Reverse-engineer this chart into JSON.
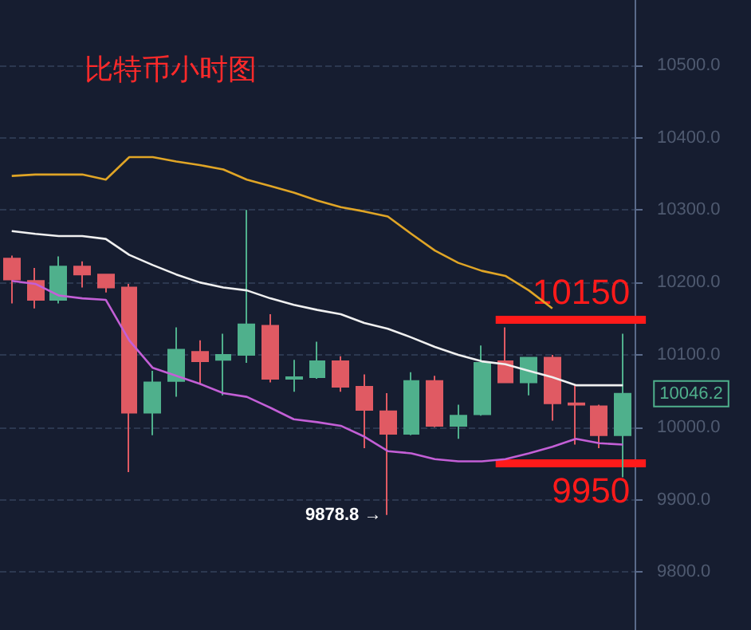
{
  "chart_data": {
    "type": "candlestick",
    "title": "比特币小时图",
    "categories": [
      null,
      null,
      null,
      null,
      null,
      null,
      null,
      null,
      null,
      null,
      null,
      null,
      null,
      null,
      null,
      null,
      null,
      null,
      null,
      null,
      null,
      null,
      null,
      null,
      null,
      null,
      null
    ],
    "ohlc": [
      [
        10233,
        10237,
        10171,
        10204
      ],
      [
        10202,
        10220,
        10164,
        10176
      ],
      [
        10176,
        10236,
        10171,
        10222
      ],
      [
        10222,
        10229,
        10193,
        10211
      ],
      [
        10211,
        10211,
        10186,
        10193
      ],
      [
        10193,
        10198,
        9938,
        10020
      ],
      [
        10020,
        10078,
        9989,
        10062
      ],
      [
        10064,
        10138,
        10042,
        10107
      ],
      [
        10104,
        10120,
        10060,
        10091
      ],
      [
        10093,
        10129,
        10044,
        10100
      ],
      [
        10100,
        10300,
        10089,
        10142
      ],
      [
        10140,
        10156,
        10062,
        10067
      ],
      [
        10067,
        10093,
        10049,
        10069
      ],
      [
        10069,
        10118,
        10067,
        10091
      ],
      [
        10091,
        10098,
        10049,
        10056
      ],
      [
        10056,
        10073,
        9971,
        10024
      ],
      [
        10022,
        10047,
        9878.8,
        9991
      ],
      [
        9991,
        10076,
        9989,
        10064
      ],
      [
        10064,
        10071,
        10000,
        10002
      ],
      [
        10002,
        10031,
        9984,
        10016
      ],
      [
        10018,
        10113,
        10016,
        10089
      ],
      [
        10091,
        10138,
        10062,
        10062
      ],
      [
        10062,
        10096,
        10044,
        10096
      ],
      [
        10096,
        10100,
        10009,
        10033
      ],
      [
        10033,
        10058,
        9976,
        10031
      ],
      [
        10029,
        10031,
        9971,
        9989
      ],
      [
        9989,
        10129,
        9931,
        10046.2
      ]
    ],
    "colors": [
      "#e05a63",
      "#e05a63",
      "#4fb08c",
      "#e05a63",
      "#e05a63",
      "#e05a63",
      "#4fb08c",
      "#4fb08c",
      "#e05a63",
      "#4fb08c",
      "#4fb08c",
      "#e05a63",
      "#4fb08c",
      "#4fb08c",
      "#e05a63",
      "#e05a63",
      "#e05a63",
      "#4fb08c",
      "#e05a63",
      "#4fb08c",
      "#4fb08c",
      "#e05a63",
      "#4fb08c",
      "#e05a63",
      "#e05a63",
      "#e05a63",
      "#4fb08c"
    ],
    "series": [
      {
        "type": "line",
        "color": "#e0a526",
        "values": [
          10347,
          10349,
          10349,
          10349,
          10342,
          10373,
          10373,
          10367,
          10362,
          10356,
          10342,
          10333,
          10324,
          10313,
          10304,
          10298,
          10291,
          10267,
          10244,
          10227,
          10216,
          10209,
          10189,
          10164,
          null,
          null,
          null
        ]
      },
      {
        "type": "line",
        "color": "#f0f0f0",
        "values": [
          10271,
          10267,
          10264,
          10264,
          10260,
          10238,
          10224,
          10211,
          10200,
          10193,
          10189,
          10178,
          10169,
          10162,
          10156,
          10144,
          10136,
          10124,
          10111,
          10100,
          10091,
          10087,
          10078,
          10069,
          10058,
          10058,
          10058
        ]
      },
      {
        "type": "line",
        "color": "#c35fd6",
        "values": [
          10202,
          10198,
          10182,
          10178,
          10176,
          10120,
          10082,
          10071,
          10060,
          10047,
          10042,
          10027,
          10011,
          10007,
          10002,
          9987,
          9967,
          9964,
          9956,
          9953,
          9953,
          9956,
          9964,
          9973,
          9984,
          9978,
          9976
        ]
      }
    ],
    "ylim": [
      9720,
      10590
    ],
    "yticks": [
      {
        "value": 9800,
        "label": "9800.0"
      },
      {
        "value": 9900,
        "label": "9900.0"
      },
      {
        "value": 10000,
        "label": "10000.0"
      },
      {
        "value": 10100,
        "label": "10100.0"
      },
      {
        "value": 10200,
        "label": "10200.0"
      },
      {
        "value": 10300,
        "label": "10300.0"
      },
      {
        "value": 10400,
        "label": "10400.0"
      },
      {
        "value": 10500,
        "label": "10500.0"
      }
    ],
    "grid": "y",
    "marker": "none",
    "ref_lines": [
      {
        "axis": "y",
        "value": 10150,
        "label": "10150",
        "color": "#ff1a1a"
      },
      {
        "axis": "y",
        "value": 9950,
        "label": "9950",
        "color": "#ff1a1a"
      }
    ],
    "annotations": [
      "9878.8 →",
      "10046.2"
    ]
  }
}
